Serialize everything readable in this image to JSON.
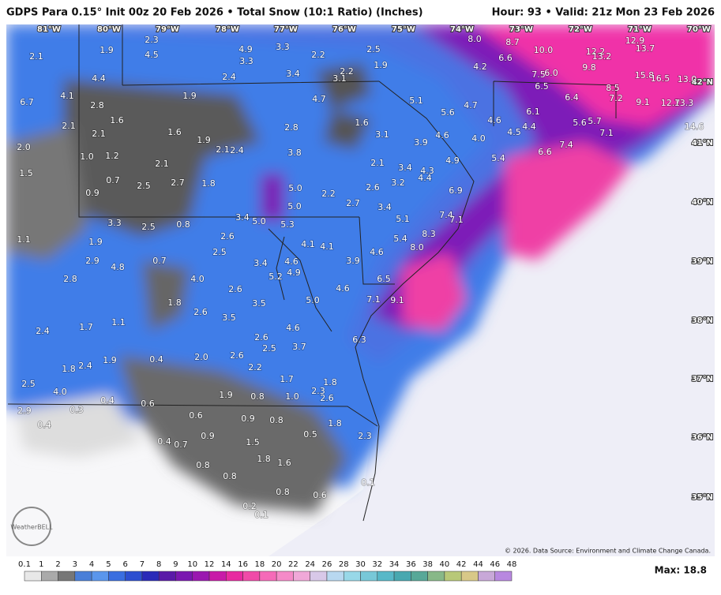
{
  "header": {
    "title": "GDPS Para 0.15° Init 00z 20 Feb 2026 • Total Snow (10:1 Ratio) (Inches)",
    "valid": "Hour: 93 • Valid: 21z Mon 23 Feb 2026"
  },
  "longitudes": [
    "81°W",
    "80°W",
    "79°W",
    "78°W",
    "77°W",
    "76°W",
    "75°W",
    "74°W",
    "73°W",
    "72°W",
    "71°W",
    "70°W"
  ],
  "latitudes": [
    "42°N",
    "41°N",
    "40°N",
    "39°N",
    "38°N",
    "37°N",
    "36°N",
    "35°N"
  ],
  "snow_labels": [
    "1.9",
    "2.3",
    "4.5",
    "2.1",
    "4.4",
    "4.9",
    "3.3",
    "3.3",
    "2.2",
    "2.5",
    "1.9",
    "2.4",
    "3.4",
    "2.2",
    "3.1",
    "8.0",
    "8.7",
    "6.6",
    "10.0",
    "12.2",
    "13.2",
    "12.9",
    "13.7",
    "9.8",
    "4.2",
    "7.5",
    "6.0",
    "15.8",
    "16.5",
    "13.0",
    "4.1",
    "6.7",
    "2.8",
    "1.9",
    "4.7",
    "5.1",
    "5.6",
    "4.7",
    "6.5",
    "6.4",
    "8.5",
    "7.2",
    "9.1",
    "12.7",
    "13.3",
    "1.6",
    "2.8",
    "1.6",
    "2.1",
    "2.1",
    "1.6",
    "1.9",
    "3.1",
    "4.6",
    "6.1",
    "4.4",
    "4.5",
    "5.6",
    "5.7",
    "7.1",
    "14.6",
    "2.0",
    "1.0",
    "1.2",
    "2.1",
    "2.4",
    "3.8",
    "3.9",
    "4.6",
    "4.0",
    "7.4",
    "6.6",
    "5.4",
    "1.5",
    "2.1",
    "2.1",
    "3.4",
    "4.9",
    "4.3",
    "4.4",
    "0.7",
    "2.5",
    "2.7",
    "1.8",
    "5.0",
    "2.2",
    "2.6",
    "3.2",
    "6.9",
    "0.9",
    "5.0",
    "2.7",
    "3.4",
    "5.1",
    "7.4",
    "7.1",
    "3.3",
    "2.5",
    "0.8",
    "3.4",
    "5.0",
    "5.3",
    "8.3",
    "1.1",
    "1.9",
    "2.6",
    "5.4",
    "2.5",
    "4.1",
    "4.1",
    "8.0",
    "4.6",
    "2.9",
    "4.8",
    "0.7",
    "3.4",
    "4.6",
    "3.9",
    "4.9",
    "5.2",
    "2.8",
    "4.0",
    "2.6",
    "6.5",
    "4.6",
    "5.0",
    "7.1",
    "9.1",
    "1.8",
    "3.5",
    "2.6",
    "3.5",
    "1.7",
    "1.1",
    "4.6",
    "2.4",
    "2.6",
    "2.5",
    "3.7",
    "6.3",
    "1.9",
    "2.4",
    "1.8",
    "0.4",
    "2.0",
    "2.6",
    "2.2",
    "1.7",
    "2.5",
    "4.0",
    "2.3",
    "1.8",
    "0.4",
    "0.6",
    "1.9",
    "0.8",
    "1.0",
    "2.6",
    "2.9",
    "0.3",
    "0.6",
    "0.9",
    "0.8",
    "1.8",
    "0.4",
    "0.9",
    "0.5",
    "2.3",
    "0.4",
    "0.7",
    "1.5",
    "1.8",
    "1.6",
    "0.8",
    "0.8",
    "0.1",
    "0.8",
    "0.6",
    "0.2",
    "0.1"
  ],
  "colorbar": {
    "labels": [
      "0.1",
      "1",
      "2",
      "3",
      "4",
      "5",
      "6",
      "7",
      "8",
      "9",
      "10",
      "12",
      "14",
      "16",
      "18",
      "20",
      "22",
      "24",
      "26",
      "28",
      "30",
      "32",
      "34",
      "36",
      "38",
      "40",
      "42",
      "44",
      "46",
      "48"
    ]
  },
  "max_label": "Max: 18.8",
  "credit": "© 2026. Data Source: Environment and Climate Change Canada.",
  "logo": "WeatherBELL"
}
